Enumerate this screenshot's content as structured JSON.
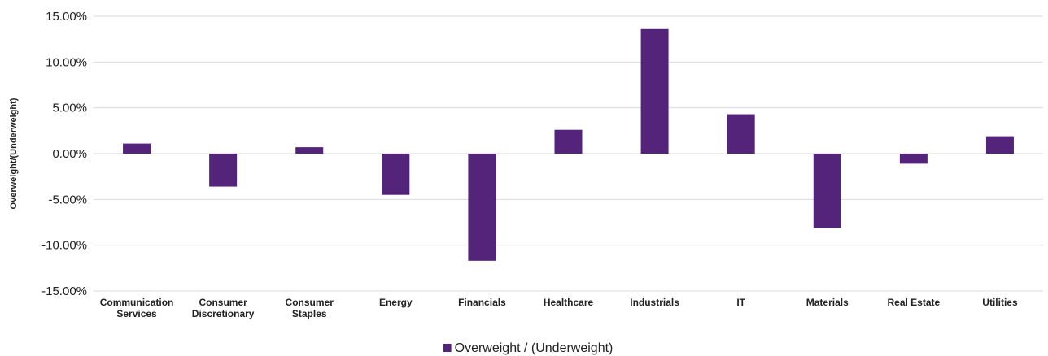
{
  "chart_data": {
    "type": "bar",
    "title": "",
    "xlabel": "",
    "ylabel": "Overweight/(Underweight)",
    "categories": [
      [
        "Communication",
        "Services"
      ],
      [
        "Consumer",
        "Discretionary"
      ],
      [
        "Consumer",
        "Staples"
      ],
      [
        "Energy"
      ],
      [
        "Financials"
      ],
      [
        "Healthcare"
      ],
      [
        "Industrials"
      ],
      [
        "IT"
      ],
      [
        "Materials"
      ],
      [
        "Real Estate"
      ],
      [
        "Utilities"
      ]
    ],
    "series": [
      {
        "name": "Overweight / (Underweight)",
        "values": [
          1.1,
          -3.6,
          0.7,
          -4.5,
          -11.7,
          2.6,
          13.6,
          4.3,
          -8.1,
          -1.1,
          1.9
        ]
      }
    ],
    "ylim": [
      -15,
      15
    ],
    "yticks": [
      15,
      10,
      5,
      0,
      -5,
      -10,
      -15
    ],
    "ytick_labels": [
      "15.00%",
      "10.00%",
      "5.00%",
      "0.00%",
      "-5.00%",
      "-10.00%",
      "-15.00%"
    ],
    "grid": true,
    "legend_position": "bottom-center",
    "colors": {
      "bar": "#54237a",
      "grid": "#d9d9d9",
      "text": "#222222"
    }
  }
}
